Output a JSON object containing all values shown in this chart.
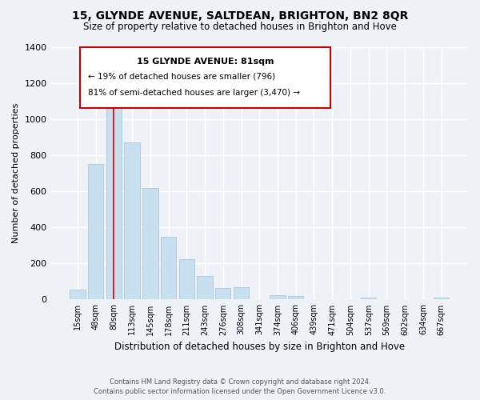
{
  "title": "15, GLYNDE AVENUE, SALTDEAN, BRIGHTON, BN2 8QR",
  "subtitle": "Size of property relative to detached houses in Brighton and Hove",
  "xlabel": "Distribution of detached houses by size in Brighton and Hove",
  "ylabel": "Number of detached properties",
  "bar_labels": [
    "15sqm",
    "48sqm",
    "80sqm",
    "113sqm",
    "145sqm",
    "178sqm",
    "211sqm",
    "243sqm",
    "276sqm",
    "308sqm",
    "341sqm",
    "374sqm",
    "406sqm",
    "439sqm",
    "471sqm",
    "504sqm",
    "537sqm",
    "569sqm",
    "602sqm",
    "634sqm",
    "667sqm"
  ],
  "bar_values": [
    55,
    750,
    1095,
    870,
    620,
    350,
    225,
    130,
    65,
    70,
    0,
    25,
    20,
    0,
    0,
    0,
    10,
    0,
    0,
    0,
    10
  ],
  "bar_color": "#c8dff0",
  "bar_edge_color": "#a0c0dc",
  "marker_line_color": "#cc0000",
  "marker_bar_index": 2,
  "ylim": [
    0,
    1400
  ],
  "yticks": [
    0,
    200,
    400,
    600,
    800,
    1000,
    1200,
    1400
  ],
  "annotation_title": "15 GLYNDE AVENUE: 81sqm",
  "annotation_line1": "← 19% of detached houses are smaller (796)",
  "annotation_line2": "81% of semi-detached houses are larger (3,470) →",
  "footer1": "Contains HM Land Registry data © Crown copyright and database right 2024.",
  "footer2": "Contains public sector information licensed under the Open Government Licence v3.0.",
  "bg_color": "#eef2f7",
  "grid_color": "#ffffff",
  "annotation_box_color": "#cc0000",
  "title_fontsize": 10,
  "subtitle_fontsize": 8.5,
  "ylabel_fontsize": 8,
  "xlabel_fontsize": 8.5,
  "tick_fontsize": 7,
  "ytick_fontsize": 8,
  "footer_fontsize": 6,
  "annot_title_fontsize": 8,
  "annot_text_fontsize": 7.5
}
